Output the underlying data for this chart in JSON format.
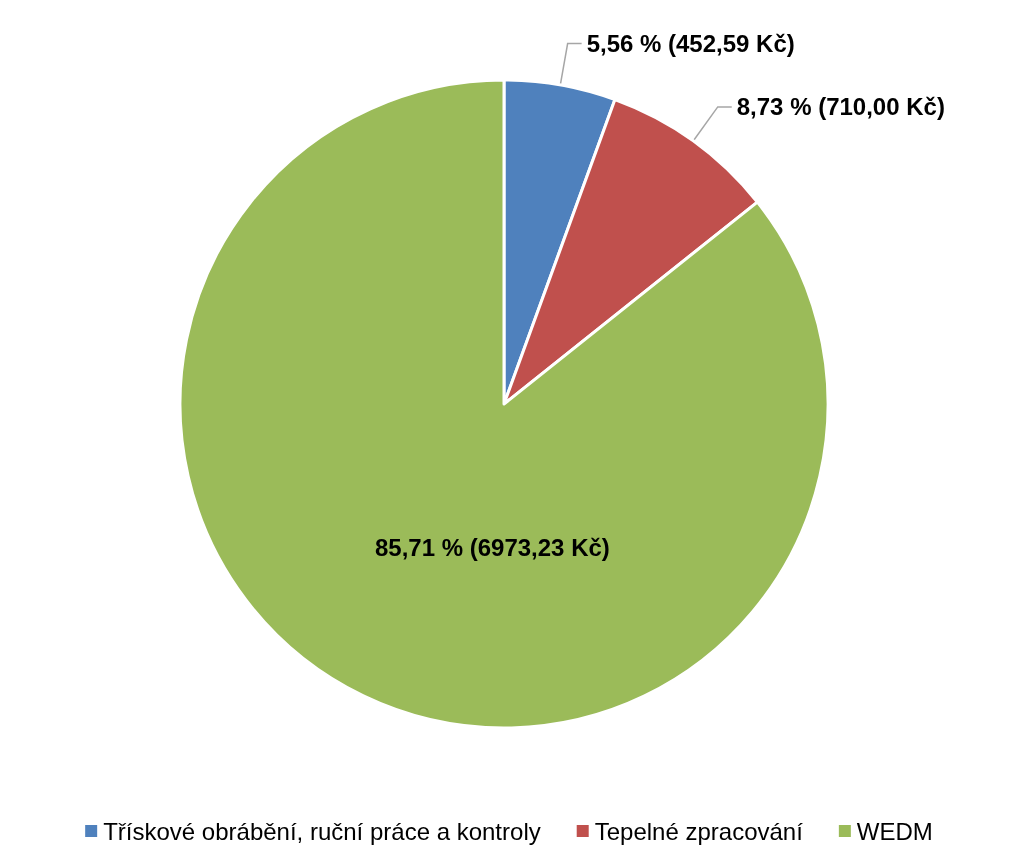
{
  "chart_data": {
    "type": "pie",
    "categories": [
      "Třískové obrábění, ruční práce a kontroly",
      "Tepelné zpracování",
      "WEDM"
    ],
    "values": [
      452.59,
      710.0,
      6973.23
    ],
    "colors": [
      "#4f81bd",
      "#c0504d",
      "#9bbb59"
    ],
    "value_labels": [
      "5,56 % (452,59 Kč)",
      "8,73 % (710,00 Kč)",
      "85,71 % (6973,23 Kč)"
    ],
    "legend": "bottom"
  }
}
